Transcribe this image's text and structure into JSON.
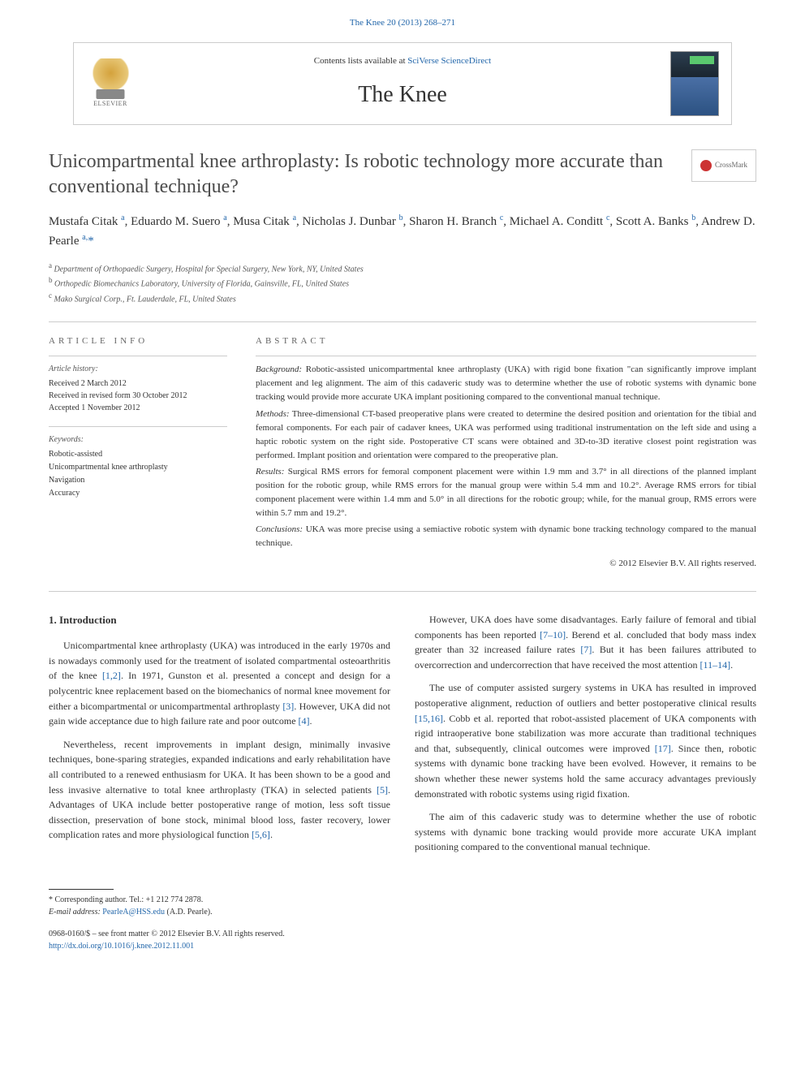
{
  "journal_ref": "The Knee 20 (2013) 268–271",
  "contents_text": "Contents lists available at",
  "contents_link": "SciVerse ScienceDirect",
  "journal_name": "The Knee",
  "publisher_name": "ELSEVIER",
  "journal_cover_label": "Knee",
  "crossmark_label": "CrossMark",
  "title": "Unicompartmental knee arthroplasty: Is robotic technology more accurate than conventional technique?",
  "authors": [
    {
      "name": "Mustafa Citak",
      "aff": "a"
    },
    {
      "name": "Eduardo M. Suero",
      "aff": "a"
    },
    {
      "name": "Musa Citak",
      "aff": "a"
    },
    {
      "name": "Nicholas J. Dunbar",
      "aff": "b"
    },
    {
      "name": "Sharon H. Branch",
      "aff": "c"
    },
    {
      "name": "Michael A. Conditt",
      "aff": "c"
    },
    {
      "name": "Scott A. Banks",
      "aff": "b"
    },
    {
      "name": "Andrew D. Pearle",
      "aff": "a",
      "corresponding": true
    }
  ],
  "affiliations": [
    {
      "key": "a",
      "text": "Department of Orthopaedic Surgery, Hospital for Special Surgery, New York, NY, United States"
    },
    {
      "key": "b",
      "text": "Orthopedic Biomechanics Laboratory, University of Florida, Gainsville, FL, United States"
    },
    {
      "key": "c",
      "text": "Mako Surgical Corp., Ft. Lauderdale, FL, United States"
    }
  ],
  "article_info_heading": "ARTICLE INFO",
  "abstract_heading": "ABSTRACT",
  "history_label": "Article history:",
  "history": {
    "received": "Received 2 March 2012",
    "revised": "Received in revised form 30 October 2012",
    "accepted": "Accepted 1 November 2012"
  },
  "keywords_label": "Keywords:",
  "keywords": [
    "Robotic-assisted",
    "Unicompartmental knee arthroplasty",
    "Navigation",
    "Accuracy"
  ],
  "abstract": {
    "background_label": "Background:",
    "background": "Robotic-assisted unicompartmental knee arthroplasty (UKA) with rigid bone fixation \"can significantly improve implant placement and leg alignment. The aim of this cadaveric study was to determine whether the use of robotic systems with dynamic bone tracking would provide more accurate UKA implant positioning compared to the conventional manual technique.",
    "methods_label": "Methods:",
    "methods": "Three-dimensional CT-based preoperative plans were created to determine the desired position and orientation for the tibial and femoral components. For each pair of cadaver knees, UKA was performed using traditional instrumentation on the left side and using a haptic robotic system on the right side. Postoperative CT scans were obtained and 3D-to-3D iterative closest point registration was performed. Implant position and orientation were compared to the preoperative plan.",
    "results_label": "Results:",
    "results": "Surgical RMS errors for femoral component placement were within 1.9 mm and 3.7° in all directions of the planned implant position for the robotic group, while RMS errors for the manual group were within 5.4 mm and 10.2°. Average RMS errors for tibial component placement were within 1.4 mm and 5.0° in all directions for the robotic group; while, for the manual group, RMS errors were within 5.7 mm and 19.2°.",
    "conclusions_label": "Conclusions:",
    "conclusions": "UKA was more precise using a semiactive robotic system with dynamic bone tracking technology compared to the manual technique."
  },
  "copyright": "© 2012 Elsevier B.V. All rights reserved.",
  "intro_heading": "1. Introduction",
  "body": {
    "p1_a": "Unicompartmental knee arthroplasty (UKA) was introduced in the early 1970s and is nowadays commonly used for the treatment of isolated compartmental osteoarthritis of the knee ",
    "p1_cite1": "[1,2]",
    "p1_b": ". In 1971, Gunston et al. presented a concept and design for a polycentric knee replacement based on the biomechanics of normal knee movement for either a bicompartmental or unicompartmental arthroplasty ",
    "p1_cite2": "[3]",
    "p1_c": ". However, UKA did not gain wide acceptance due to high failure rate and poor outcome ",
    "p1_cite3": "[4]",
    "p1_d": ".",
    "p2_a": "Nevertheless, recent improvements in implant design, minimally invasive techniques, bone-sparing strategies, expanded indications and early rehabilitation have all contributed to a renewed enthusiasm for UKA. It has been shown to be a good and less invasive alternative to total knee arthroplasty (TKA) in selected patients ",
    "p2_cite1": "[5]",
    "p2_b": ". Advantages of UKA include better postoperative range of motion, less soft tissue dissection, preservation of bone stock, minimal blood loss, faster recovery, lower complication rates and more physiological function ",
    "p2_cite2": "[5,6]",
    "p2_c": ".",
    "p3_a": "However, UKA does have some disadvantages. Early failure of femoral and tibial components has been reported ",
    "p3_cite1": "[7–10]",
    "p3_b": ". Berend et al. concluded that body mass index greater than 32 increased failure rates ",
    "p3_cite2": "[7]",
    "p3_c": ". But it has been failures attributed to overcorrection and undercorrection that have received the most attention ",
    "p3_cite3": "[11–14]",
    "p3_d": ".",
    "p4_a": "The use of computer assisted surgery systems in UKA has resulted in improved postoperative alignment, reduction of outliers and better postoperative clinical results ",
    "p4_cite1": "[15,16]",
    "p4_b": ". Cobb et al. reported that robot-assisted placement of UKA components with rigid intraoperative bone stabilization was more accurate than traditional techniques and that, subsequently, clinical outcomes were improved ",
    "p4_cite2": "[17]",
    "p4_c": ". Since then, robotic systems with dynamic bone tracking have been evolved. However, it remains to be shown whether these newer systems hold the same accuracy advantages previously demonstrated with robotic systems using rigid fixation.",
    "p5": "The aim of this cadaveric study was to determine whether the use of robotic systems with dynamic bone tracking would provide more accurate UKA implant positioning compared to the conventional manual technique."
  },
  "footer": {
    "corresp_label": "Corresponding author. Tel.: +1 212 774 2878.",
    "email_label": "E-mail address:",
    "email": "PearleA@HSS.edu",
    "email_name": "(A.D. Pearle).",
    "front_matter": "0968-0160/$ – see front matter © 2012 Elsevier B.V. All rights reserved.",
    "doi": "http://dx.doi.org/10.1016/j.knee.2012.11.001"
  },
  "colors": {
    "link": "#2266aa",
    "text": "#333333",
    "heading_gray": "#666666",
    "border": "#cccccc"
  }
}
